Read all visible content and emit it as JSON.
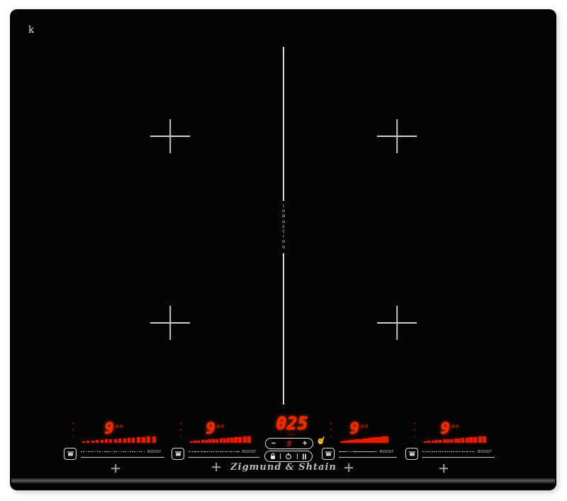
{
  "device": {
    "corner_mark": "k",
    "brand_logo": "Zigmund & Shtain",
    "center_divider_label": "induction"
  },
  "colors": {
    "surface_black": "#040404",
    "led_red_bright": "#ff2600",
    "led_red_dim": "#a41c02",
    "marking_white": "#d2d2d2"
  },
  "center_controls": {
    "timer_display": "025",
    "timer_unit": "min",
    "minus_label": "−",
    "level_display": "9",
    "plus_label": "+",
    "icons": [
      "lock-icon",
      "power-icon",
      "pause-icon",
      "touch-gesture-icon"
    ]
  },
  "zone_clusters": [
    {
      "power_level": "9",
      "display_suffix": "an",
      "boost_label": "BOOST"
    },
    {
      "power_level": "9",
      "display_suffix": "an",
      "boost_label": "BOOST"
    },
    {
      "power_level": "9",
      "display_suffix": "an",
      "boost_label": "BOOST"
    },
    {
      "power_level": "9",
      "display_suffix": "an",
      "boost_label": "BOOST"
    }
  ],
  "cluster_config": {
    "ramp_segments": 16,
    "slider_ticks": 28,
    "indicator_glyphs": [
      "≈",
      "+",
      "⊥"
    ]
  }
}
